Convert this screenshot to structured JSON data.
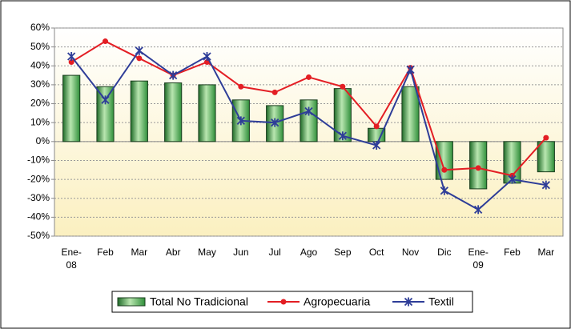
{
  "chart_data": {
    "type": "bar-line",
    "categories": [
      "Ene-\n08",
      "Feb",
      "Mar",
      "Abr",
      "May",
      "Jun",
      "Jul",
      "Ago",
      "Sep",
      "Oct",
      "Nov",
      "Dic",
      "Ene-\n09",
      "Feb",
      "Mar"
    ],
    "series": [
      {
        "name": "Total No Tradicional",
        "type": "bar",
        "color": "#2f8f3a",
        "values": [
          35,
          29,
          32,
          31,
          30,
          22,
          19,
          22,
          28,
          7,
          29,
          -20,
          -25,
          -22,
          -16
        ]
      },
      {
        "name": "Agropecuaria",
        "type": "line",
        "color": "#e31e24",
        "values": [
          42,
          53,
          44,
          35,
          42,
          29,
          26,
          34,
          29,
          8,
          39,
          -15,
          -14,
          -18,
          2
        ]
      },
      {
        "name": "Textil",
        "type": "line",
        "color": "#2e3d98",
        "values": [
          45,
          22,
          48,
          35,
          45,
          11,
          10,
          16,
          3,
          -2,
          38,
          -26,
          -36,
          -20,
          -23
        ]
      }
    ],
    "ylim": [
      -50,
      60
    ],
    "yticks": [
      {
        "value": -50,
        "label": "-50%"
      },
      {
        "value": -40,
        "label": "-40%"
      },
      {
        "value": -30,
        "label": "-30%"
      },
      {
        "value": -20,
        "label": "-20%"
      },
      {
        "value": -10,
        "label": "-10%"
      },
      {
        "value": 0,
        "label": "0%"
      },
      {
        "value": 10,
        "label": "10%"
      },
      {
        "value": 20,
        "label": "20%"
      },
      {
        "value": 30,
        "label": "30%"
      },
      {
        "value": 40,
        "label": "40%"
      },
      {
        "value": 50,
        "label": "50%"
      },
      {
        "value": 60,
        "label": "60%"
      }
    ],
    "grid": true,
    "legend": "bottom"
  }
}
